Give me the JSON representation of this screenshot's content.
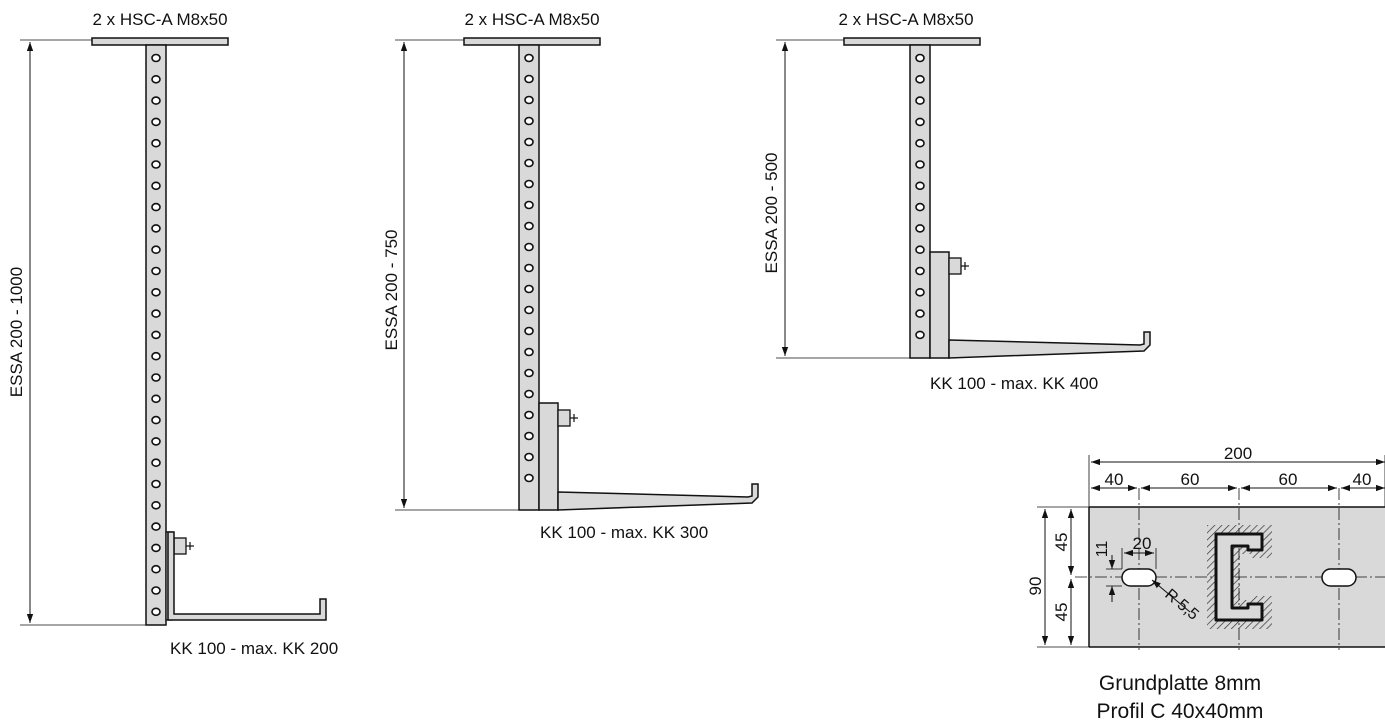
{
  "diagram": {
    "hanger_1": {
      "anchor_label": "2 x HSC-A M8x50",
      "length_label": "ESSA 200 - 1000",
      "tray_label": "KK 100 - max. KK 200"
    },
    "hanger_2": {
      "anchor_label": "2 x HSC-A M8x50",
      "length_label": "ESSA 200 - 750",
      "tray_label": "KK 100 - max. KK 300"
    },
    "hanger_3": {
      "anchor_label": "2 x HSC-A M8x50",
      "length_label": "ESSA 200 - 500",
      "tray_label": "KK 100 - max. KK 400"
    },
    "base_plate": {
      "total_width": "200",
      "segments": [
        "40",
        "60",
        "60",
        "40"
      ],
      "height_total": "90",
      "height_segments": [
        "45",
        "45"
      ],
      "slot_width": "20",
      "slot_height": "11",
      "radius": "R 5,5",
      "caption_line1": "Grundplatte 8mm",
      "caption_line2": "Profil C 40x40mm"
    }
  }
}
